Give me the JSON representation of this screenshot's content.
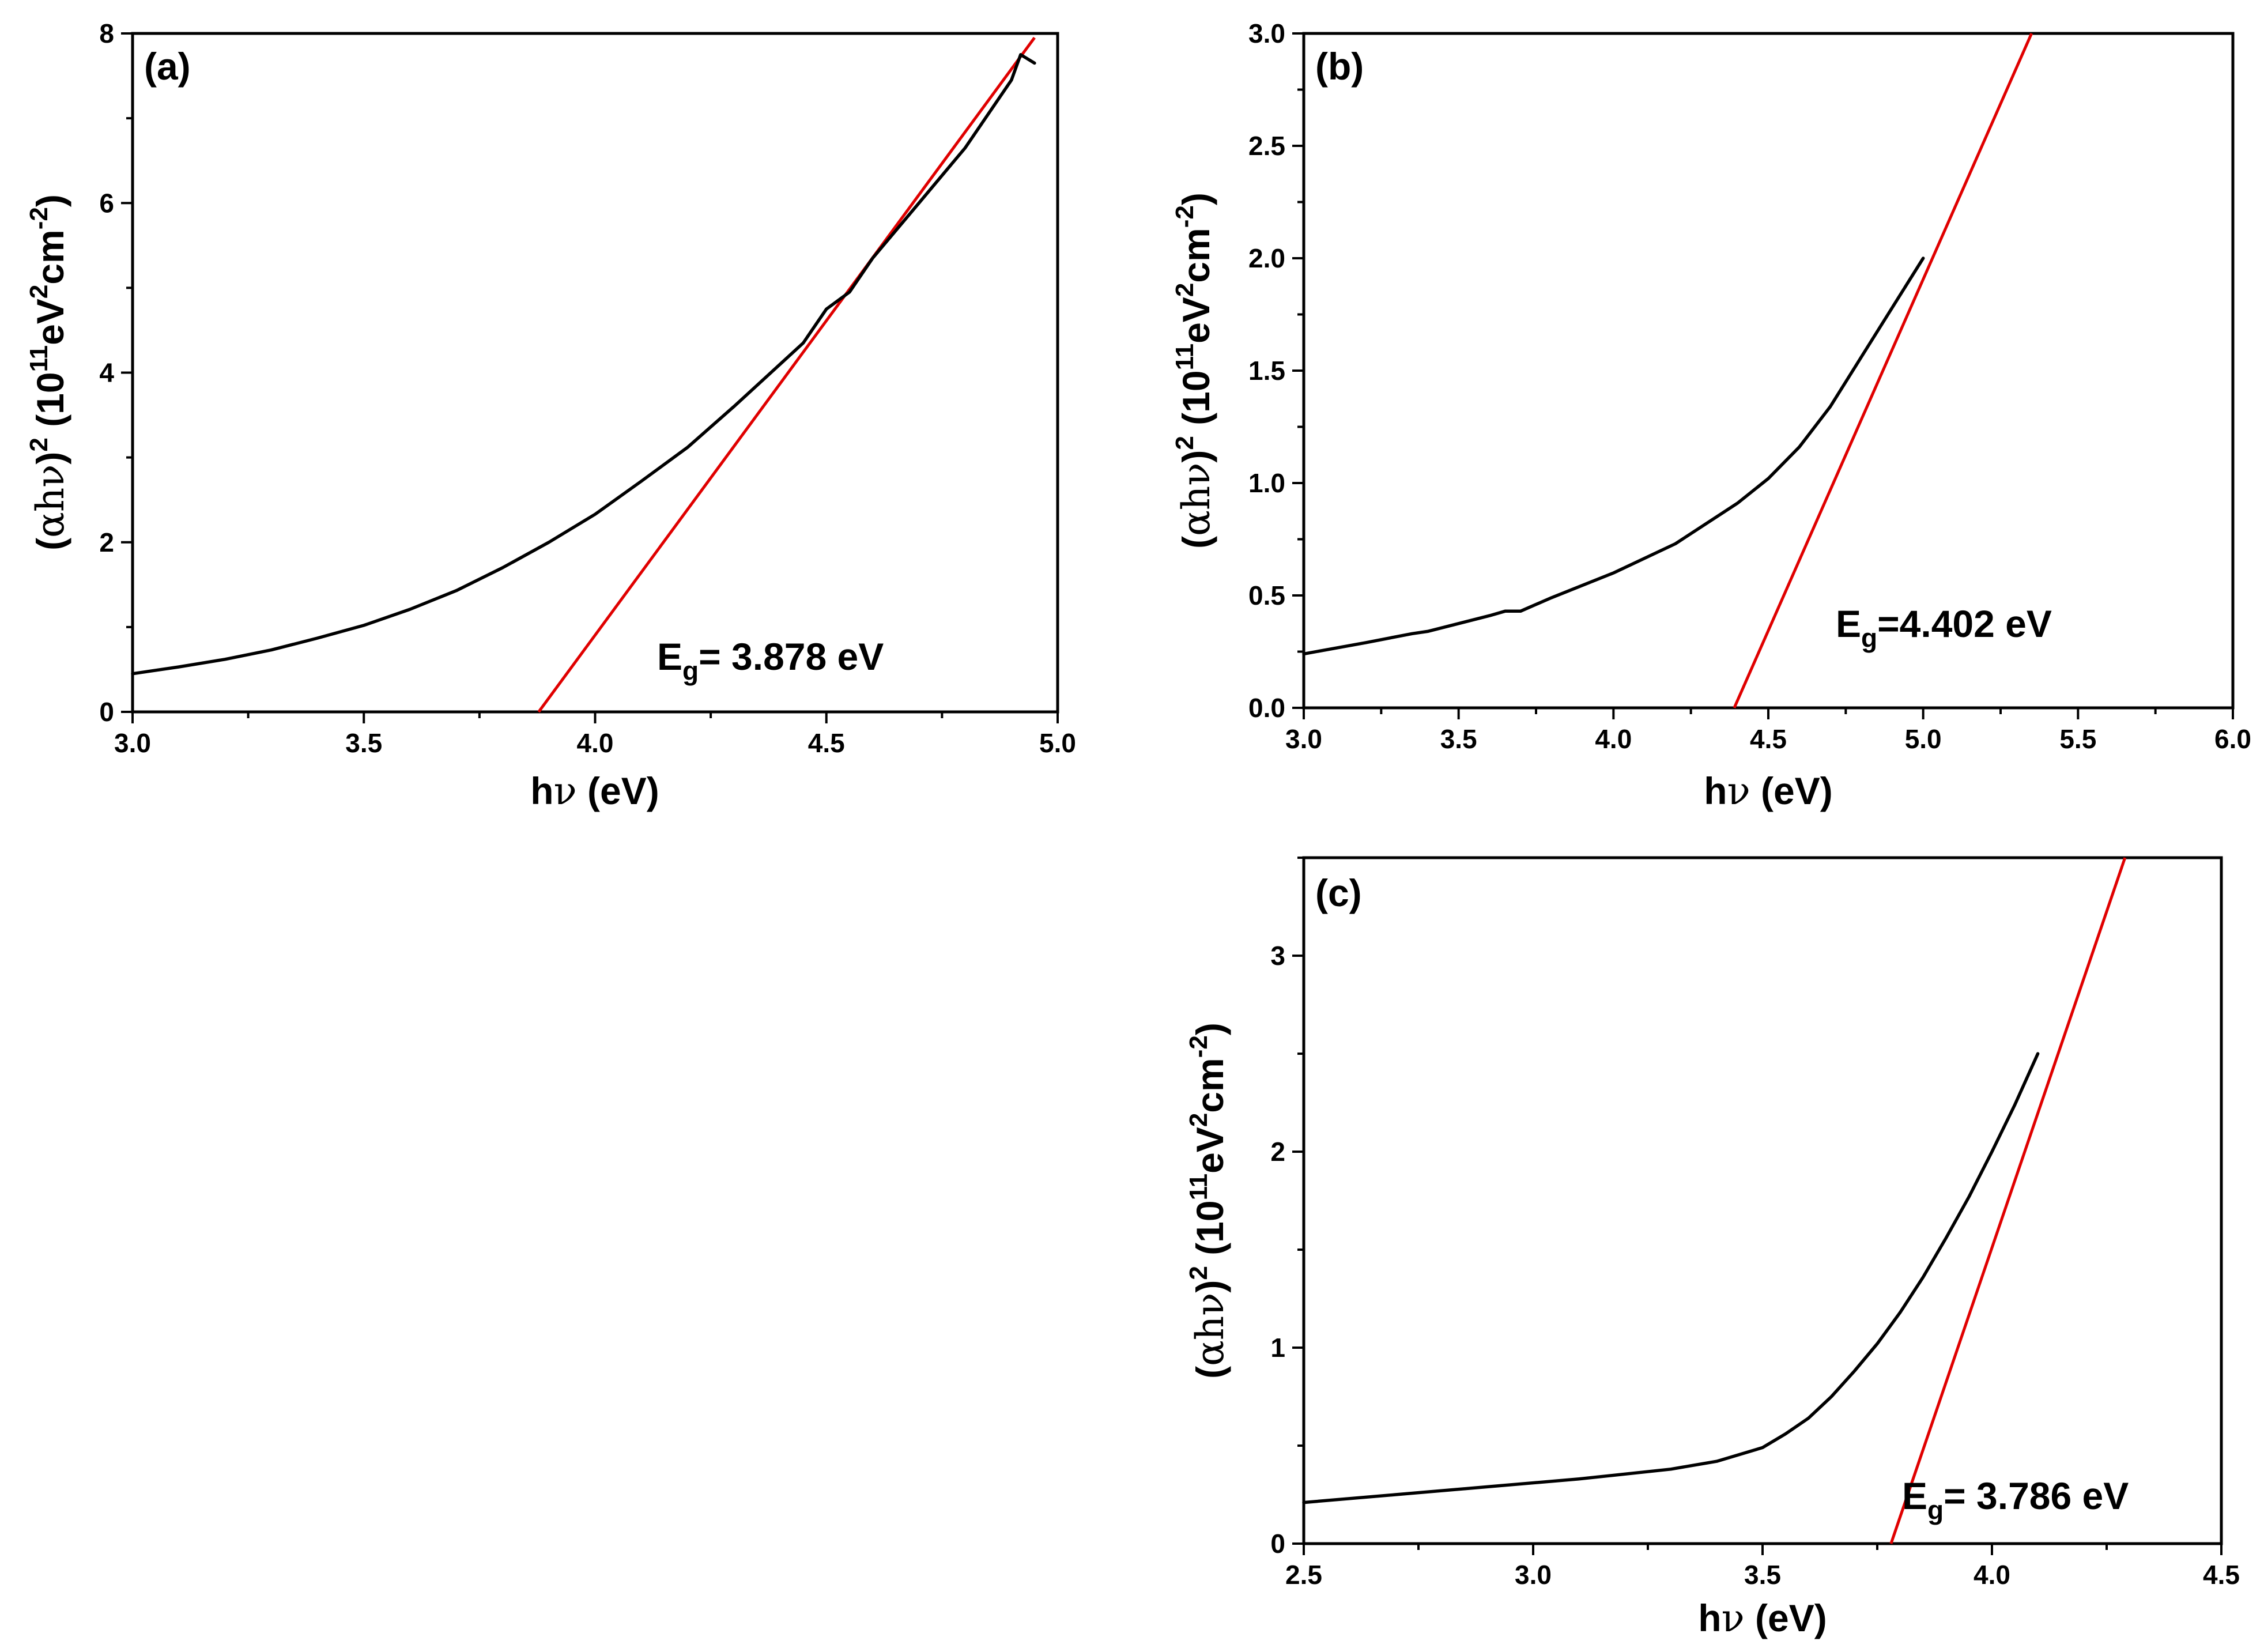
{
  "colors": {
    "data": "#000000",
    "fit": "#e00000",
    "axis": "#000000"
  },
  "chart_data": [
    {
      "type": "line",
      "panel_label": "(a)",
      "xlabel": "hν (eV)",
      "xlabel_parts": {
        "sym_h": "h",
        "sym_nu": "ν",
        "unit": " (eV)"
      },
      "ylabel_parts": {
        "open": "(",
        "alpha": "α",
        "hnu": "hν",
        "close": ")",
        "sq": "2",
        "base": " (10",
        "exp11": "11",
        "ev": "eV",
        "sq2": "2",
        "cm": "cm",
        "neg2": "-2",
        "end": ")"
      },
      "xlim": [
        3.0,
        5.0
      ],
      "ylim": [
        0,
        8
      ],
      "xticks": [
        "3.0",
        "3.5",
        "4.0",
        "4.5",
        "5.0"
      ],
      "xtick_values": [
        3.0,
        3.5,
        4.0,
        4.5,
        5.0
      ],
      "yticks": [
        "0",
        "2",
        "4",
        "6",
        "8"
      ],
      "ytick_values": [
        0,
        2,
        4,
        6,
        8
      ],
      "annotation": {
        "main": "E",
        "sub": "g",
        "rest": "= 3.878 eV"
      },
      "band_gap_eV": 3.878,
      "series": [
        {
          "name": "(αhν)^2",
          "x": [
            3.0,
            3.1,
            3.2,
            3.3,
            3.4,
            3.5,
            3.6,
            3.7,
            3.8,
            3.9,
            4.0,
            4.1,
            4.2,
            4.3,
            4.4,
            4.45,
            4.5,
            4.55,
            4.6,
            4.7,
            4.8,
            4.85,
            4.9,
            4.92,
            4.95
          ],
          "y": [
            0.45,
            0.53,
            0.62,
            0.73,
            0.87,
            1.02,
            1.21,
            1.43,
            1.7,
            2.0,
            2.33,
            2.72,
            3.12,
            3.6,
            4.1,
            4.35,
            4.75,
            4.95,
            5.35,
            6.0,
            6.65,
            7.05,
            7.45,
            7.75,
            7.65
          ]
        },
        {
          "name": "linear fit",
          "x": [
            3.878,
            4.95
          ],
          "y": [
            0,
            7.95
          ]
        }
      ]
    },
    {
      "type": "line",
      "panel_label": "(b)",
      "xlabel": "hν (eV)",
      "xlabel_parts": {
        "sym_h": "h",
        "sym_nu": "ν",
        "unit": " (eV)"
      },
      "ylabel_parts": {
        "open": "(",
        "alpha": "α",
        "hnu": "hν",
        "close": ")",
        "sq": "2",
        "base": " (10",
        "exp11": "11",
        "ev": "eV",
        "sq2": "2",
        "cm": "cm",
        "neg2": "-2",
        "end": ")"
      },
      "xlim": [
        3.0,
        6.0
      ],
      "ylim": [
        0.0,
        3.0
      ],
      "xticks": [
        "3.0",
        "3.5",
        "4.0",
        "4.5",
        "5.0",
        "5.5",
        "6.0"
      ],
      "xtick_values": [
        3.0,
        3.5,
        4.0,
        4.5,
        5.0,
        5.5,
        6.0
      ],
      "yticks": [
        "0.0",
        "0.5",
        "1.0",
        "1.5",
        "2.0",
        "2.5",
        "3.0"
      ],
      "ytick_values": [
        0.0,
        0.5,
        1.0,
        1.5,
        2.0,
        2.5,
        3.0
      ],
      "annotation": {
        "main": "E",
        "sub": "g",
        "rest": "=4.402 eV"
      },
      "band_gap_eV": 4.402,
      "series": [
        {
          "name": "(αhν)^2",
          "x": [
            3.0,
            3.2,
            3.35,
            3.4,
            3.6,
            3.65,
            3.7,
            3.8,
            4.0,
            4.2,
            4.4,
            4.5,
            4.6,
            4.7,
            4.8,
            4.9,
            5.0
          ],
          "y": [
            0.24,
            0.29,
            0.33,
            0.34,
            0.41,
            0.43,
            0.43,
            0.49,
            0.6,
            0.73,
            0.91,
            1.02,
            1.16,
            1.34,
            1.56,
            1.78,
            2.0
          ]
        },
        {
          "name": "linear fit",
          "x": [
            4.39,
            5.35
          ],
          "y": [
            0.0,
            3.0
          ]
        }
      ]
    },
    {
      "type": "line",
      "panel_label": "(c)",
      "xlabel": "hν (eV)",
      "xlabel_parts": {
        "sym_h": "h",
        "sym_nu": "ν",
        "unit": " (eV)"
      },
      "ylabel_parts": {
        "open": "(",
        "alpha": "α",
        "hnu": "hν",
        "close": ")",
        "sq": "2",
        "base": " (10",
        "exp11": "11",
        "ev": "eV",
        "sq2": "2",
        "cm": "cm",
        "neg2": "-2",
        "end": ")"
      },
      "xlim": [
        2.5,
        4.5
      ],
      "ylim": [
        0,
        3.5
      ],
      "xticks": [
        "2.5",
        "3.0",
        "3.5",
        "4.0",
        "4.5"
      ],
      "xtick_values": [
        2.5,
        3.0,
        3.5,
        4.0,
        4.5
      ],
      "yticks": [
        "0",
        "1",
        "2",
        "3"
      ],
      "ytick_values": [
        0,
        1,
        2,
        3
      ],
      "annotation": {
        "main": "E",
        "sub": "g",
        "rest": "= 3.786 eV"
      },
      "band_gap_eV": 3.786,
      "series": [
        {
          "name": "(αhν)^2",
          "x": [
            2.5,
            2.7,
            2.9,
            3.1,
            3.3,
            3.4,
            3.5,
            3.55,
            3.6,
            3.65,
            3.7,
            3.75,
            3.8,
            3.85,
            3.9,
            3.95,
            4.0,
            4.05,
            4.1
          ],
          "y": [
            0.21,
            0.25,
            0.29,
            0.33,
            0.38,
            0.42,
            0.49,
            0.56,
            0.64,
            0.75,
            0.88,
            1.02,
            1.18,
            1.36,
            1.56,
            1.77,
            2.0,
            2.24,
            2.5
          ]
        },
        {
          "name": "linear fit",
          "x": [
            3.78,
            4.29
          ],
          "y": [
            0.0,
            3.5
          ]
        }
      ]
    }
  ]
}
